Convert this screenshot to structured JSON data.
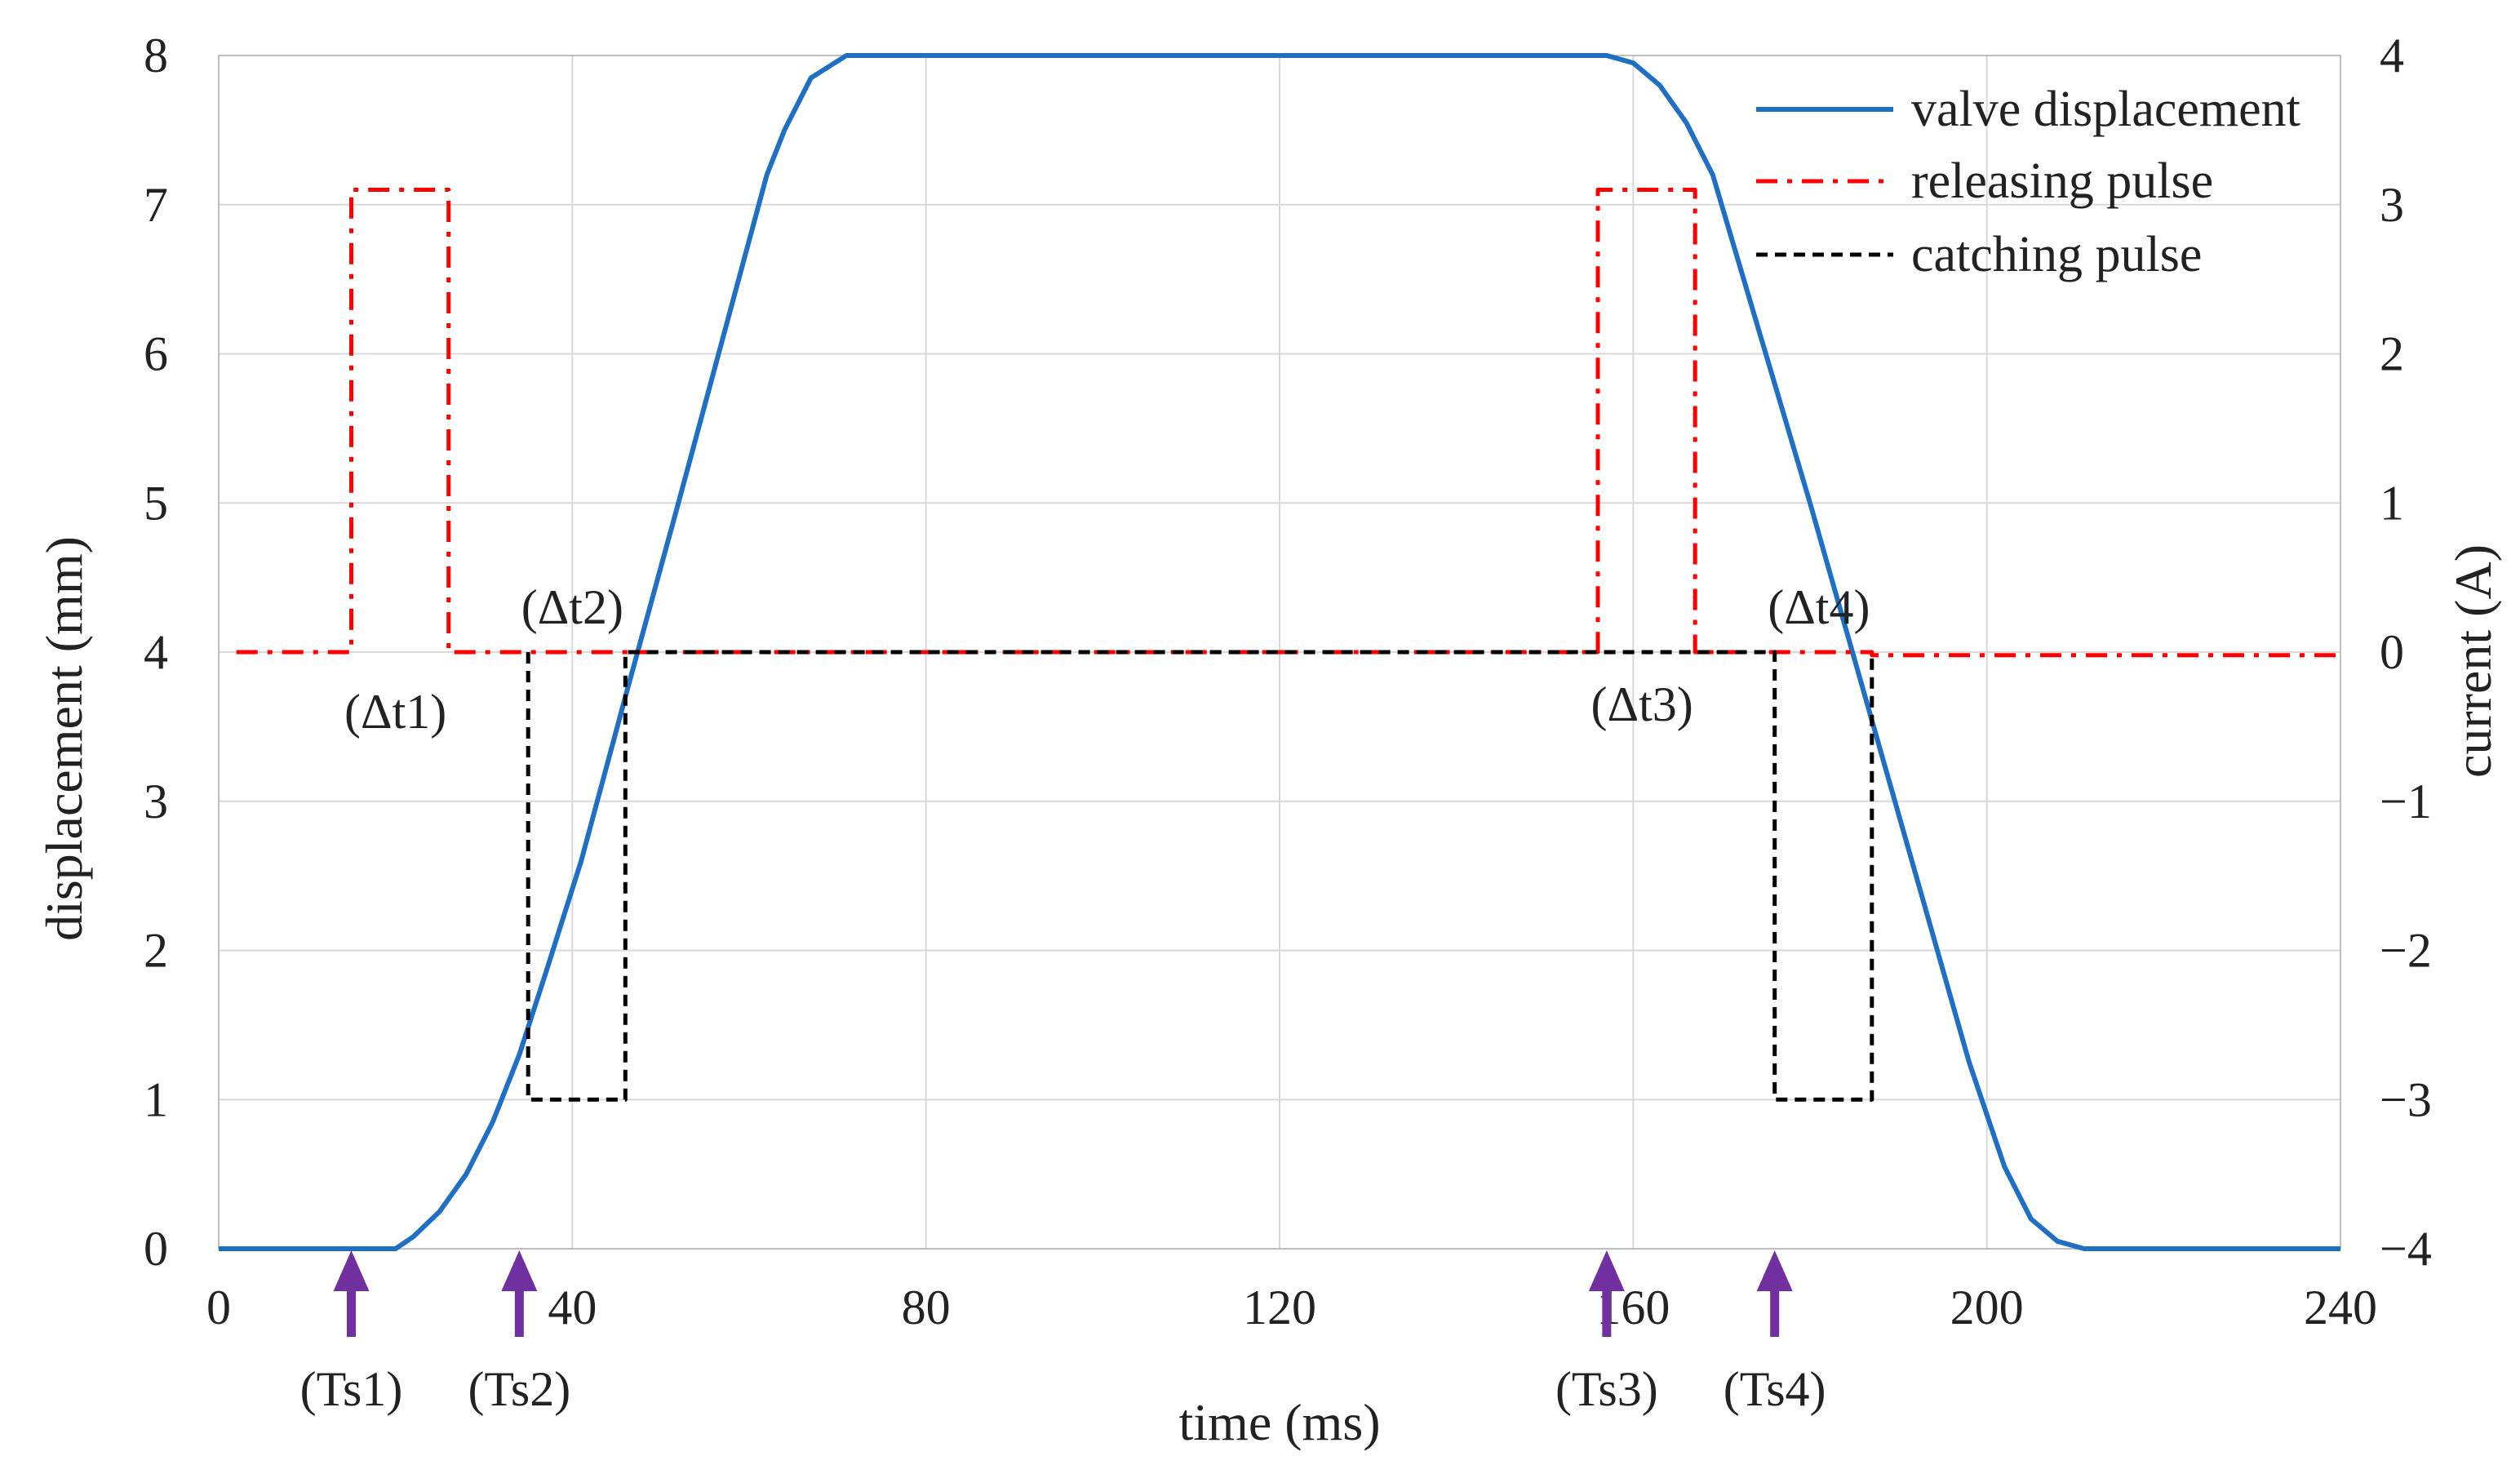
{
  "chart_data": {
    "type": "line",
    "title": "",
    "xlabel": "time (ms)",
    "ylabel": "displacement (mm)",
    "y2label": "current (A)",
    "xlim": [
      0,
      240
    ],
    "ylim": [
      0,
      8
    ],
    "y2lim": [
      -4,
      4
    ],
    "grid": true,
    "legend_position": "top-right",
    "x_ticks": [
      "0",
      "40",
      "80",
      "120",
      "160",
      "200",
      "240"
    ],
    "y_ticks": [
      "0",
      "1",
      "2",
      "3",
      "4",
      "5",
      "6",
      "7",
      "8"
    ],
    "y2_ticks": [
      "−4",
      "−3",
      "−2",
      "−1",
      "0",
      "1",
      "2",
      "3",
      "4"
    ],
    "series": [
      {
        "name": "valve displacement",
        "axis": "left",
        "color": "#1f6fc5",
        "style": "solid",
        "x": [
          0,
          20,
          22,
          25,
          28,
          31,
          34,
          37,
          41,
          46,
          52,
          57,
          62,
          64,
          67,
          71,
          157,
          160,
          163,
          166,
          169,
          172,
          175,
          180,
          186,
          192,
          198,
          202,
          205,
          208,
          211,
          240
        ],
        "y": [
          0,
          0,
          0.08,
          0.25,
          0.5,
          0.85,
          1.3,
          1.85,
          2.6,
          3.7,
          5.0,
          6.1,
          7.2,
          7.5,
          7.85,
          8.0,
          8.0,
          7.95,
          7.8,
          7.55,
          7.2,
          6.6,
          6.0,
          5.0,
          3.75,
          2.5,
          1.25,
          0.55,
          0.2,
          0.05,
          0,
          0
        ]
      },
      {
        "name": "releasing pulse",
        "axis": "right",
        "color": "#ff0000",
        "style": "dash-dot",
        "x": [
          2,
          15,
          15,
          26,
          26,
          35,
          35,
          46,
          46,
          156,
          156,
          167,
          167,
          176,
          176,
          187,
          187,
          240
        ],
        "y": [
          0,
          0,
          3.1,
          3.1,
          0,
          0,
          0,
          0,
          0,
          0,
          3.1,
          3.1,
          0,
          0,
          0,
          0,
          -0.02,
          -0.02
        ]
      },
      {
        "name": "catching pulse",
        "axis": "right",
        "color": "#000000",
        "style": "dashed",
        "x": [
          35,
          35,
          46,
          46,
          176,
          176,
          187,
          187
        ],
        "y": [
          0,
          -3,
          -3,
          0,
          0,
          -3,
          -3,
          0
        ]
      }
    ],
    "annotations": [
      {
        "text": "(Δt1)",
        "x": 20,
        "y": 3.6
      },
      {
        "text": "(Δt2)",
        "x": 40,
        "y": 4.3
      },
      {
        "text": "(Δt3)",
        "x": 161,
        "y": 3.65
      },
      {
        "text": "(Δt4)",
        "x": 181,
        "y": 4.3
      }
    ],
    "markers": [
      {
        "label": "(Ts1)",
        "x": 15
      },
      {
        "label": "(Ts2)",
        "x": 34
      },
      {
        "label": "(Ts3)",
        "x": 157
      },
      {
        "label": "(Ts4)",
        "x": 176
      }
    ],
    "marker_color": "#7030a0"
  }
}
